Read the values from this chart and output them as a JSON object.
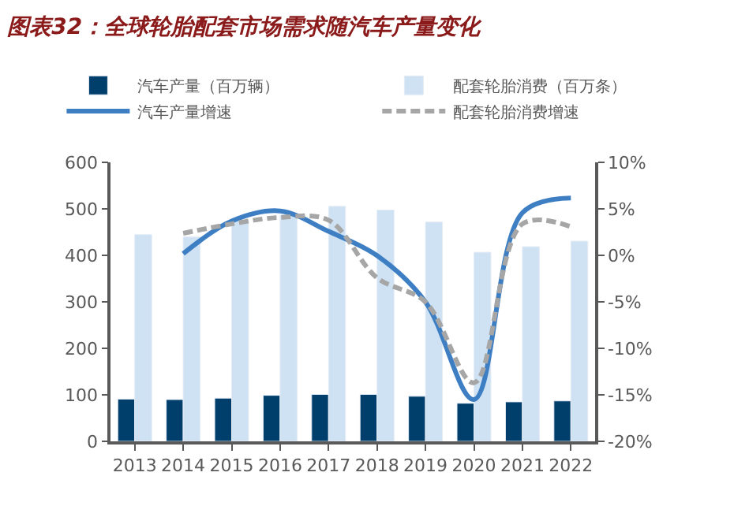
{
  "chart_data": {
    "type": "bar",
    "title": "图表32：全球轮胎配套市场需求随汽车产量变化",
    "categories": [
      "2013",
      "2014",
      "2015",
      "2016",
      "2017",
      "2018",
      "2019",
      "2020",
      "2021",
      "2022"
    ],
    "series": [
      {
        "name": "汽车产量（百万辆）",
        "color": "#003f6b",
        "values": [
          91,
          90,
          93,
          99,
          101,
          101,
          97,
          82,
          85,
          87
        ]
      },
      {
        "name": "配套轮胎消费（百万条）",
        "color": "#cfe2f3",
        "values": [
          445,
          440,
          477,
          487,
          506,
          498,
          472,
          407,
          419,
          431
        ]
      },
      {
        "name": "汽车产量增速",
        "type": "line",
        "axis": "y2",
        "color": "#3e7fc4",
        "line_style": "solid",
        "values": [
          null,
          0.2,
          3.7,
          4.8,
          2.6,
          0.0,
          -5.0,
          -15.5,
          4.6,
          6.2
        ]
      },
      {
        "name": "配套轮胎消费增速",
        "type": "line",
        "axis": "y2",
        "color": "#a6a6a6",
        "line_style": "dashed",
        "values": [
          null,
          2.4,
          3.4,
          4.1,
          3.8,
          -2.4,
          -5.0,
          -13.7,
          3.4,
          3.1
        ]
      }
    ],
    "ylim": [
      0,
      600
    ],
    "yticks": [
      0,
      100,
      200,
      300,
      400,
      500,
      600
    ],
    "y2lim": [
      -20,
      10
    ],
    "y2ticks": [
      {
        "value": -20,
        "label": "-20%"
      },
      {
        "value": -15,
        "label": "-15%"
      },
      {
        "value": -10,
        "label": "-10%"
      },
      {
        "value": -5,
        "label": "-5%"
      },
      {
        "value": 0,
        "label": "0%"
      },
      {
        "value": 5,
        "label": "5%"
      },
      {
        "value": 10,
        "label": "10%"
      }
    ],
    "legend": "top",
    "marker": "none"
  }
}
